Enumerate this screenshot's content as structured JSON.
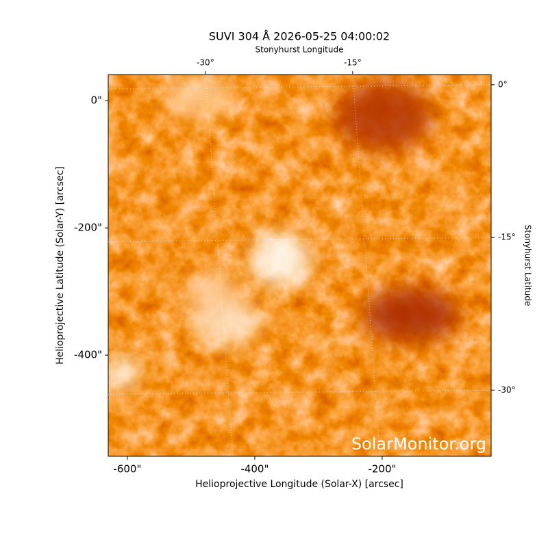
{
  "chart_data": {
    "type": "image",
    "title": "SUVI 304 Å 2026-05-25 04:00:02",
    "xlabel": "Helioprojective Longitude (Solar-X) [arcsec]",
    "ylabel": "Helioprojective Latitude (Solar-Y) [arcsec]",
    "x2label": "Stonyhurst Longitude",
    "y2label": "Stonyhurst Latitude",
    "watermark": "SolarMonitor.org",
    "xlim": [
      -630,
      -29
    ],
    "ylim": [
      -559,
      41
    ],
    "xticks": [
      {
        "value": -600,
        "label": "-600\""
      },
      {
        "value": -400,
        "label": "-400\""
      },
      {
        "value": -200,
        "label": "-200\""
      }
    ],
    "yticks": [
      {
        "value": 0,
        "label": "0\""
      },
      {
        "value": -200,
        "label": "-200\""
      },
      {
        "value": -400,
        "label": "-400\""
      }
    ],
    "x2lim": [
      -39.9,
      -0.9
    ],
    "y2lim": [
      1.0,
      -36.5
    ],
    "x2ticks": [
      {
        "value": -30,
        "label": "-30°"
      },
      {
        "value": -15,
        "label": "-15°"
      }
    ],
    "y2ticks": [
      {
        "value": 0,
        "label": "0°"
      },
      {
        "value": -15,
        "label": "-15°"
      },
      {
        "value": -30,
        "label": "-30°"
      }
    ],
    "grid": true
  }
}
